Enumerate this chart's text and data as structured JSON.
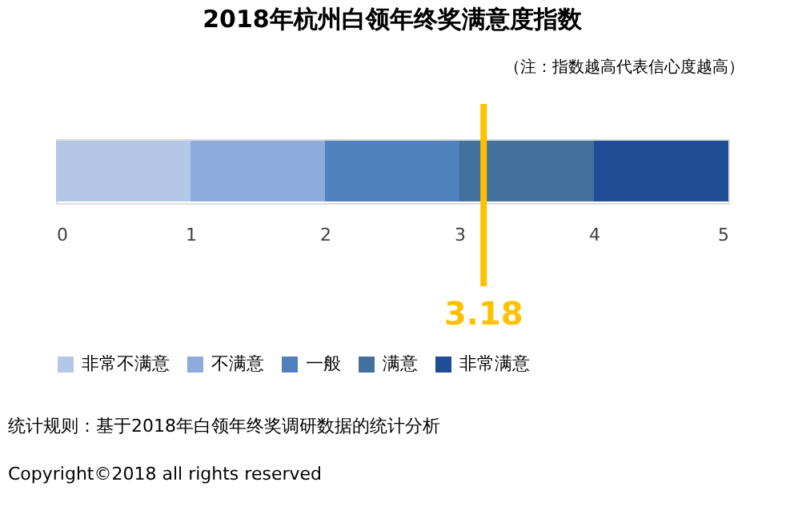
{
  "chart_data": {
    "type": "bar",
    "orientation": "horizontal",
    "stacked": true,
    "title": "2018年杭州白领年终奖满意度指数",
    "categories": [
      null
    ],
    "series": [
      {
        "name": "非常不满意",
        "color": "#b4c7e7",
        "values": [
          1
        ]
      },
      {
        "name": "不满意",
        "color": "#8faadc",
        "values": [
          1
        ]
      },
      {
        "name": "一般",
        "color": "#4f81bd",
        "values": [
          1
        ]
      },
      {
        "name": "满意",
        "color": "#41719c",
        "values": [
          1
        ]
      },
      {
        "name": "非常满意",
        "color": "#1f4e96",
        "values": [
          1
        ]
      }
    ],
    "xlim": [
      0,
      5
    ],
    "xticks": [
      0,
      1,
      2,
      3,
      4,
      5
    ],
    "grid": false,
    "legend": "bottom",
    "ref_lines": [
      {
        "axis": "x",
        "value": 3.18,
        "label": "3.18",
        "color": "#ffc000"
      }
    ],
    "annotations": [
      "（注：指数越高代表信心度越高）",
      "统计规则：基于2018年白领年终奖调研数据的统计分析",
      "Copyright©2018 all rights reserved"
    ]
  }
}
